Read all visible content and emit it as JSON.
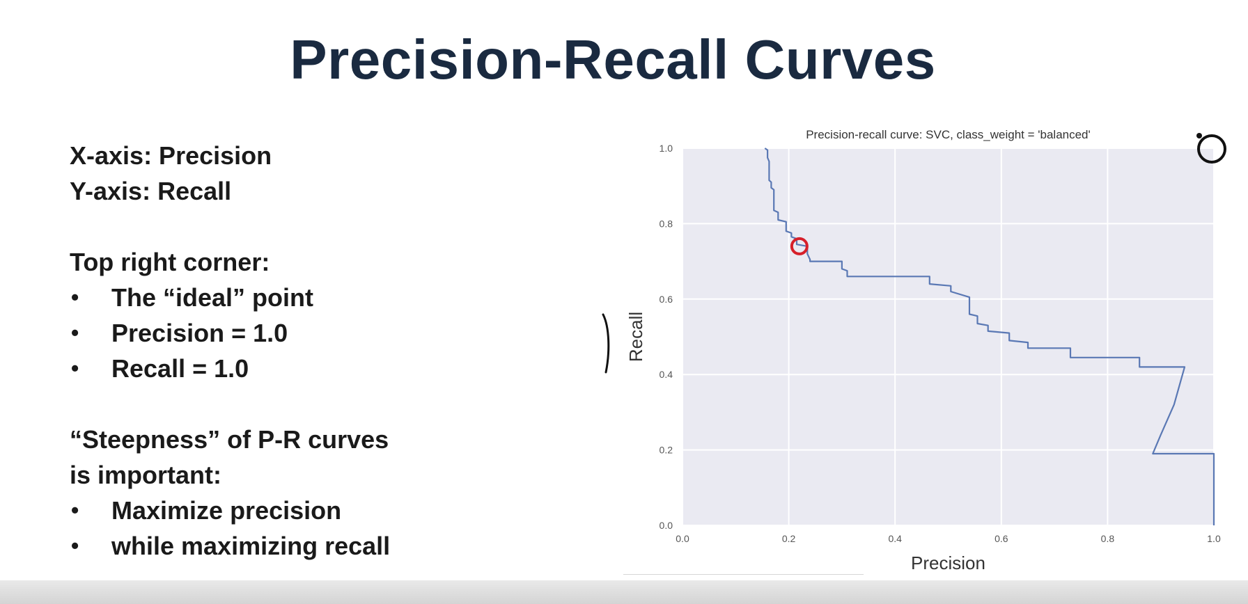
{
  "slide": {
    "title": "Precision-Recall Curves",
    "lines": [
      {
        "kind": "text",
        "text": "X-axis:  Precision"
      },
      {
        "kind": "text",
        "text": "Y-axis:  Recall"
      },
      {
        "kind": "space"
      },
      {
        "kind": "text",
        "text": "Top right corner:"
      },
      {
        "kind": "bullet",
        "text": "The “ideal” point"
      },
      {
        "kind": "bullet",
        "text": "Precision = 1.0"
      },
      {
        "kind": "bullet",
        "text": "Recall = 1.0"
      },
      {
        "kind": "space"
      },
      {
        "kind": "text",
        "text": "“Steepness” of P-R curves"
      },
      {
        "kind": "text",
        "text": "is important:"
      },
      {
        "kind": "bullet",
        "text": "Maximize precision"
      },
      {
        "kind": "bullet",
        "text": "while maximizing recall"
      }
    ],
    "bullet_glyph": "•"
  },
  "chart_data": {
    "type": "line",
    "title": "Precision-recall curve: SVC, class_weight = 'balanced'",
    "xlabel": "Precision",
    "ylabel": "Recall",
    "xlim": [
      0.0,
      1.0
    ],
    "ylim": [
      0.0,
      1.0
    ],
    "xticks": [
      "0.0",
      "0.2",
      "0.4",
      "0.6",
      "0.8",
      "1.0"
    ],
    "yticks": [
      "0.0",
      "0.2",
      "0.4",
      "0.6",
      "0.8",
      "1.0"
    ],
    "grid": true,
    "background": "#eaeaf2",
    "line_color": "#5a78b4",
    "marker_color": "#d61f2a",
    "series": [
      {
        "x": [
          0.155,
          0.16,
          0.16,
          0.163,
          0.163,
          0.167,
          0.167,
          0.172,
          0.172,
          0.18,
          0.18,
          0.195,
          0.195,
          0.205,
          0.205,
          0.215,
          0.215,
          0.235,
          0.235,
          0.24,
          0.24,
          0.3,
          0.3,
          0.31,
          0.31,
          0.465,
          0.465,
          0.505,
          0.505,
          0.54,
          0.54,
          0.555,
          0.555,
          0.575,
          0.575,
          0.615,
          0.615,
          0.65,
          0.65,
          0.73,
          0.73,
          0.86,
          0.86,
          0.945,
          0.925,
          0.9,
          0.885,
          1.0,
          1.0
        ],
        "y": [
          1.0,
          0.995,
          0.975,
          0.965,
          0.915,
          0.91,
          0.895,
          0.89,
          0.835,
          0.83,
          0.81,
          0.805,
          0.78,
          0.775,
          0.765,
          0.76,
          0.745,
          0.74,
          0.72,
          0.705,
          0.7,
          0.7,
          0.68,
          0.675,
          0.66,
          0.66,
          0.64,
          0.635,
          0.62,
          0.605,
          0.56,
          0.555,
          0.535,
          0.53,
          0.515,
          0.51,
          0.49,
          0.485,
          0.47,
          0.47,
          0.445,
          0.445,
          0.42,
          0.42,
          0.32,
          0.24,
          0.19,
          0.19,
          0.0
        ]
      }
    ],
    "highlight_point": {
      "x": 0.22,
      "y": 0.74
    }
  }
}
